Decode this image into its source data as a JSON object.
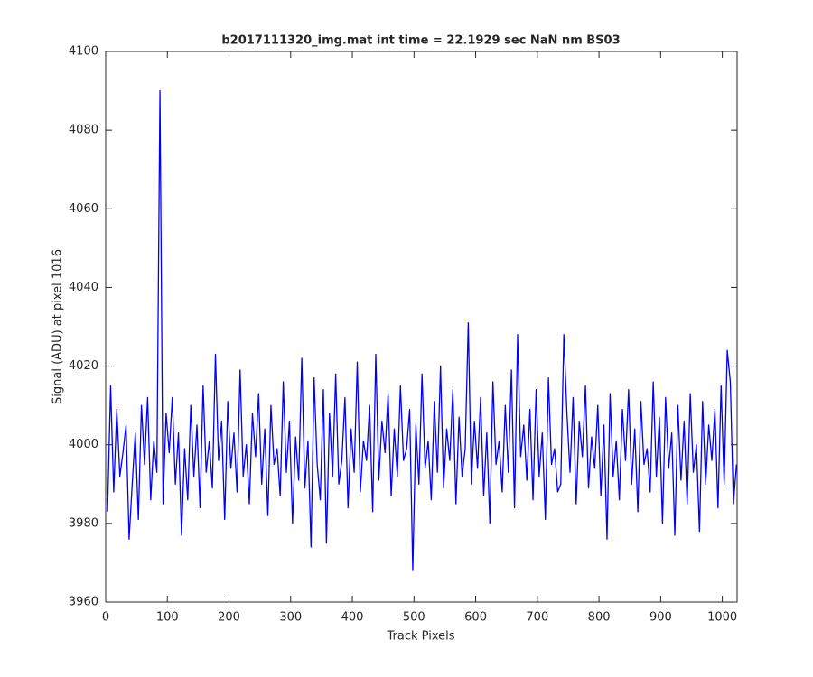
{
  "chart_data": {
    "type": "line",
    "title": "b2017111320_img.mat int time = 22.1929 sec  NaN nm BS03",
    "x_label": "Track Pixels",
    "y_label": "Signal (ADU) at pixel 1016",
    "xlim": [
      0,
      1024
    ],
    "ylim": [
      3960,
      4100
    ],
    "xticks": [
      0,
      100,
      200,
      300,
      400,
      500,
      600,
      700,
      800,
      900,
      1000
    ],
    "yticks": [
      3960,
      3980,
      4000,
      4020,
      4040,
      4060,
      4080,
      4100
    ],
    "grid": false,
    "series": [
      {
        "color": "#0000ff",
        "x": [
          3,
          8,
          13,
          18,
          23,
          28,
          33,
          38,
          43,
          48,
          53,
          58,
          63,
          68,
          73,
          78,
          83,
          88,
          93,
          98,
          103,
          108,
          113,
          118,
          123,
          128,
          133,
          138,
          143,
          148,
          153,
          158,
          163,
          168,
          173,
          178,
          183,
          188,
          193,
          198,
          203,
          208,
          213,
          218,
          223,
          228,
          233,
          238,
          243,
          248,
          253,
          258,
          263,
          268,
          273,
          278,
          283,
          288,
          293,
          298,
          303,
          308,
          313,
          318,
          323,
          328,
          333,
          338,
          343,
          348,
          353,
          358,
          363,
          368,
          373,
          378,
          383,
          388,
          393,
          398,
          403,
          408,
          413,
          418,
          423,
          428,
          433,
          438,
          443,
          448,
          453,
          458,
          463,
          468,
          473,
          478,
          483,
          488,
          493,
          498,
          503,
          508,
          513,
          518,
          523,
          528,
          533,
          538,
          543,
          548,
          553,
          558,
          563,
          568,
          573,
          578,
          583,
          588,
          593,
          598,
          603,
          608,
          613,
          618,
          623,
          628,
          633,
          638,
          643,
          648,
          653,
          658,
          663,
          668,
          673,
          678,
          683,
          688,
          693,
          698,
          703,
          708,
          713,
          718,
          723,
          728,
          733,
          738,
          743,
          748,
          753,
          758,
          763,
          768,
          773,
          778,
          783,
          788,
          793,
          798,
          803,
          808,
          813,
          818,
          823,
          828,
          833,
          838,
          843,
          848,
          853,
          858,
          863,
          868,
          873,
          878,
          883,
          888,
          893,
          898,
          903,
          908,
          913,
          918,
          923,
          928,
          933,
          938,
          943,
          948,
          953,
          958,
          963,
          968,
          973,
          978,
          983,
          988,
          993,
          998,
          1003,
          1008,
          1013,
          1018,
          1023
        ],
        "values": [
          3983,
          4015,
          3988,
          4009,
          3992,
          3998,
          4005,
          3976,
          3990,
          4003,
          3981,
          4010,
          3995,
          4012,
          3986,
          4001,
          3993,
          4090,
          3985,
          4008,
          3998,
          4012,
          3990,
          4003,
          3977,
          3999,
          3986,
          4010,
          3992,
          4005,
          3984,
          4015,
          3993,
          4001,
          3989,
          4023,
          3996,
          4006,
          3981,
          4011,
          3994,
          4003,
          3988,
          4019,
          3992,
          4000,
          3985,
          4008,
          3997,
          4013,
          3990,
          4004,
          3982,
          4010,
          3995,
          3999,
          3987,
          4016,
          3993,
          4006,
          3980,
          4002,
          3991,
          4022,
          3989,
          4001,
          3974,
          4017,
          3995,
          3986,
          4014,
          3975,
          4008,
          3992,
          4018,
          3990,
          3996,
          4012,
          3984,
          4004,
          3993,
          4021,
          3988,
          4001,
          3996,
          4010,
          3983,
          4023,
          3991,
          4006,
          3998,
          4013,
          3987,
          4004,
          3992,
          4015,
          3996,
          3999,
          4009,
          3968,
          4005,
          3990,
          4018,
          3994,
          4001,
          3986,
          4011,
          3993,
          4020,
          3989,
          4004,
          3996,
          4014,
          3985,
          4007,
          3992,
          3999,
          4031,
          3990,
          4006,
          3994,
          4012,
          3987,
          4003,
          3980,
          4016,
          3995,
          4001,
          3988,
          4010,
          3993,
          4019,
          3984,
          4028,
          3997,
          4005,
          3991,
          4009,
          3986,
          4014,
          3992,
          4003,
          3981,
          4017,
          3995,
          3999,
          3988,
          3990,
          4028,
          4008,
          3993,
          4012,
          3985,
          4006,
          3997,
          4015,
          3989,
          4002,
          3994,
          4010,
          3987,
          4005,
          3976,
          4013,
          3992,
          4001,
          3986,
          4009,
          3996,
          4014,
          3990,
          4004,
          3983,
          4011,
          3995,
          3999,
          3988,
          4016,
          3992,
          4007,
          3980,
          4012,
          3994,
          4003,
          3977,
          4010,
          3991,
          4006,
          3985,
          4013,
          3993,
          4000,
          3978,
          4011,
          3990,
          4005,
          3996,
          4009,
          3984,
          4015,
          3990,
          4024,
          4016,
          3985,
          3995
        ]
      }
    ]
  }
}
